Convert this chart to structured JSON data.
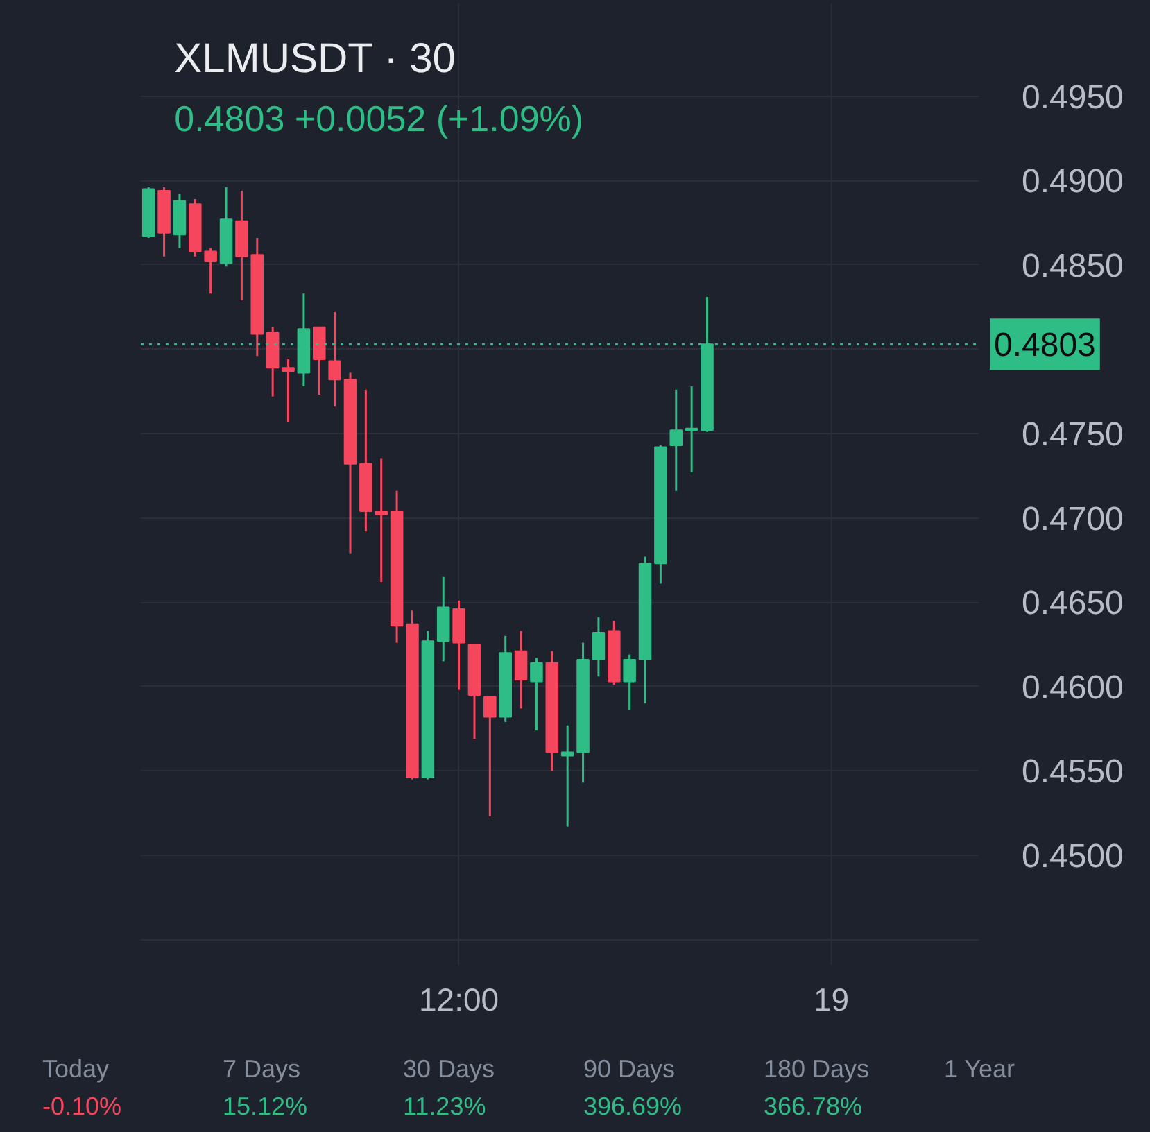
{
  "chart_data": {
    "type": "candlestick",
    "title": "XLMUSDT · 30",
    "subtitle": "0.4803  +0.0052 (+1.09%)",
    "categories": [
      null,
      null,
      null,
      null,
      null,
      null,
      null,
      null,
      null,
      null,
      null,
      null,
      null,
      null,
      null,
      null,
      null,
      null,
      null,
      null,
      "12:00",
      null,
      null,
      null,
      null,
      null,
      null,
      null,
      null,
      null,
      null,
      null,
      null,
      null,
      null,
      null,
      null,
      null,
      null,
      null,
      null,
      null,
      null,
      null,
      "19",
      null,
      null,
      null,
      null,
      null,
      null,
      null,
      null,
      null
    ],
    "ohlc": [
      [
        0.4867,
        0.4896,
        0.4866,
        0.4895
      ],
      [
        0.4894,
        0.4896,
        0.4855,
        0.4869
      ],
      [
        0.4868,
        0.4892,
        0.486,
        0.4888
      ],
      [
        0.4886,
        0.4889,
        0.4855,
        0.4858
      ],
      [
        0.4858,
        0.486,
        0.4833,
        0.4852
      ],
      [
        0.4851,
        0.4896,
        0.4849,
        0.4877
      ],
      [
        0.4876,
        0.4894,
        0.4829,
        0.4855
      ],
      [
        0.4856,
        0.4866,
        0.4796,
        0.4809
      ],
      [
        0.481,
        0.4813,
        0.4772,
        0.4789
      ],
      [
        0.4789,
        0.4794,
        0.4757,
        0.4787
      ],
      [
        0.4786,
        0.4833,
        0.4778,
        0.4812
      ],
      [
        0.4813,
        0.4813,
        0.4773,
        0.4794
      ],
      [
        0.4793,
        0.4822,
        0.4766,
        0.4782
      ],
      [
        0.4782,
        0.4786,
        0.4679,
        0.4732
      ],
      [
        0.4732,
        0.4776,
        0.4692,
        0.4704
      ],
      [
        0.4704,
        0.4735,
        0.4662,
        0.4702
      ],
      [
        0.4704,
        0.4716,
        0.4626,
        0.4636
      ],
      [
        0.4637,
        0.4645,
        0.4545,
        0.4546
      ],
      [
        0.4546,
        0.4633,
        0.4545,
        0.4627
      ],
      [
        0.4627,
        0.4665,
        0.4615,
        0.4647
      ],
      [
        0.4646,
        0.4651,
        0.4598,
        0.4626
      ],
      [
        0.4625,
        0.4625,
        0.4569,
        0.4595
      ],
      [
        0.4594,
        0.4594,
        0.4523,
        0.4582
      ],
      [
        0.4582,
        0.463,
        0.4579,
        0.462
      ],
      [
        0.4621,
        0.4633,
        0.4587,
        0.4604
      ],
      [
        0.4603,
        0.4617,
        0.4574,
        0.4614
      ],
      [
        0.4614,
        0.4621,
        0.455,
        0.4561
      ],
      [
        0.4559,
        0.4577,
        0.4517,
        0.4561
      ],
      [
        0.4561,
        0.4626,
        0.4543,
        0.4616
      ],
      [
        0.4616,
        0.4641,
        0.4606,
        0.4632
      ],
      [
        0.4633,
        0.4639,
        0.4601,
        0.4603
      ],
      [
        0.4603,
        0.4619,
        0.4586,
        0.4616
      ],
      [
        0.4616,
        0.4677,
        0.459,
        0.4673
      ],
      [
        0.4673,
        0.4743,
        0.4661,
        0.4742
      ],
      [
        0.4743,
        0.4776,
        0.4716,
        0.4752
      ],
      [
        0.4752,
        0.4778,
        0.4727,
        0.4753
      ],
      [
        0.4752,
        0.4831,
        0.4751,
        0.4803
      ],
      null,
      null,
      null,
      null,
      null,
      null,
      null,
      null,
      null,
      null,
      null,
      null,
      null,
      null,
      null,
      null,
      null
    ],
    "colors": [
      "#2ebd85",
      "#f6465d",
      "#2ebd85",
      "#f6465d",
      "#f6465d",
      "#2ebd85",
      "#f6465d",
      "#f6465d",
      "#f6465d",
      "#f6465d",
      "#2ebd85",
      "#f6465d",
      "#f6465d",
      "#f6465d",
      "#f6465d",
      "#f6465d",
      "#f6465d",
      "#f6465d",
      "#2ebd85",
      "#2ebd85",
      "#f6465d",
      "#f6465d",
      "#f6465d",
      "#2ebd85",
      "#f6465d",
      "#2ebd85",
      "#f6465d",
      "#2ebd85",
      "#2ebd85",
      "#2ebd85",
      "#f6465d",
      "#2ebd85",
      "#2ebd85",
      "#2ebd85",
      "#2ebd85",
      "#2ebd85",
      "#2ebd85",
      null,
      null,
      null,
      null,
      null,
      null,
      null,
      null,
      null,
      null,
      null,
      null,
      null,
      null,
      null,
      null,
      null
    ],
    "ylim": [
      0.4435,
      0.5005
    ],
    "yticks": [
      {
        "value": 0.445,
        "label": null
      },
      {
        "value": 0.45,
        "label": "0.4500"
      },
      {
        "value": 0.455,
        "label": "0.4550"
      },
      {
        "value": 0.46,
        "label": "0.4600"
      },
      {
        "value": 0.465,
        "label": "0.4650"
      },
      {
        "value": 0.47,
        "label": "0.4700"
      },
      {
        "value": 0.475,
        "label": "0.4750"
      },
      {
        "value": 0.48,
        "label": null
      },
      {
        "value": 0.485,
        "label": "0.4850"
      },
      {
        "value": 0.49,
        "label": "0.4900"
      },
      {
        "value": 0.495,
        "label": "0.4950"
      }
    ],
    "grid": true,
    "ref_lines": [
      {
        "axis": "y",
        "value": 0.4803,
        "label": "0.4803",
        "color": "#2ebd85",
        "line_style": "dotted"
      }
    ],
    "annotations": [
      "Today",
      "-0.10%",
      "7 Days",
      "15.12%",
      "30 Days",
      "11.23%",
      "90 Days",
      "396.69%",
      "180 Days",
      "366.78%",
      "1 Year"
    ]
  }
}
